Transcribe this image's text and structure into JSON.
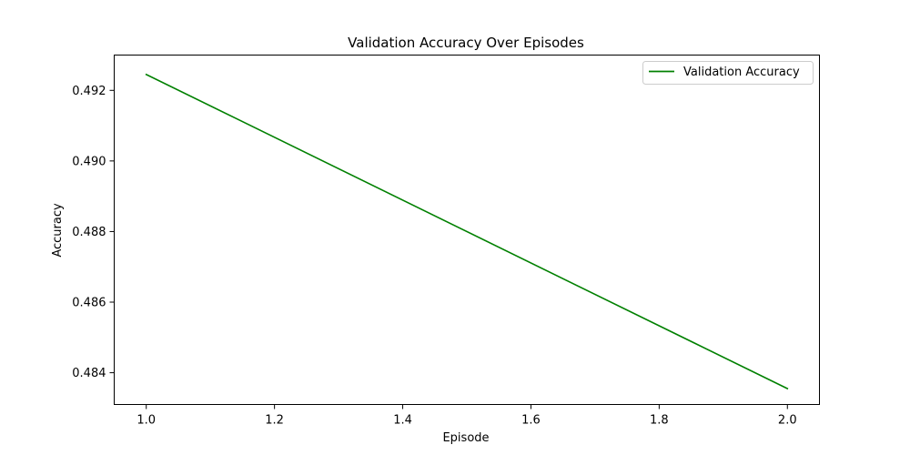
{
  "chart_data": {
    "type": "line",
    "title": "Validation Accuracy Over Episodes",
    "xlabel": "Episode",
    "ylabel": "Accuracy",
    "xlim": [
      0.95,
      2.05
    ],
    "ylim": [
      0.4831,
      0.493
    ],
    "xticks": [
      1.0,
      1.2,
      1.4,
      1.6,
      1.8,
      2.0
    ],
    "xtick_labels": [
      "1.0",
      "1.2",
      "1.4",
      "1.6",
      "1.8",
      "2.0"
    ],
    "yticks": [
      0.484,
      0.486,
      0.488,
      0.49,
      0.492
    ],
    "ytick_labels": [
      "0.484",
      "0.486",
      "0.488",
      "0.490",
      "0.492"
    ],
    "grid": false,
    "legend_position": "top-right",
    "series": [
      {
        "name": "Validation Accuracy",
        "color": "#008000",
        "x": [
          1.0,
          2.0
        ],
        "y": [
          0.49245,
          0.48355
        ]
      }
    ]
  }
}
